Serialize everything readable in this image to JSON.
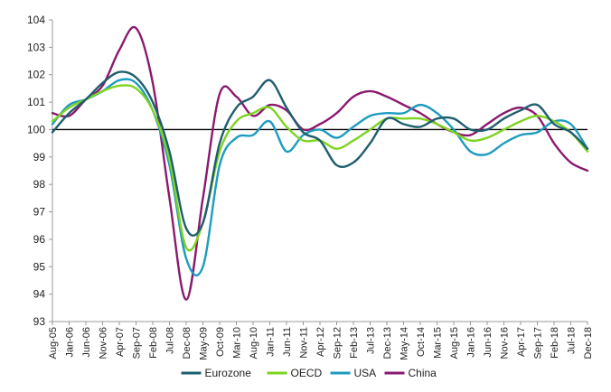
{
  "chart_data": {
    "type": "line",
    "title": "",
    "xlabel": "",
    "ylabel": "",
    "ylim": [
      93,
      104
    ],
    "yticks": [
      93,
      94,
      95,
      96,
      97,
      98,
      99,
      100,
      101,
      102,
      103,
      104
    ],
    "reference_line": 100,
    "reference_line_color": "#000000",
    "x_tick_labels": [
      "Aug-05",
      "Jan-06",
      "Jun-06",
      "Nov-06",
      "Apr-07",
      "Sep-07",
      "Feb-08",
      "Jul-08",
      "Dec-08",
      "May-09",
      "Oct-09",
      "Mar-10",
      "Aug-10",
      "Jan-11",
      "Jun-11",
      "Nov-11",
      "Apr-12",
      "Sep-12",
      "Feb-13",
      "Jul-13",
      "Dec-13",
      "May-14",
      "Oct-14",
      "Mar-15",
      "Aug-15",
      "Jan-16",
      "Jun-16",
      "Nov-16",
      "Apr-17",
      "Sep-17",
      "Feb-18",
      "Jul-18",
      "Dec-18"
    ],
    "legend_position": "bottom",
    "grid": false,
    "series": [
      {
        "name": "Eurozone",
        "color": "#1f5e6e",
        "values": [
          99.9,
          100.6,
          101.1,
          101.7,
          102.1,
          101.9,
          101.0,
          99.2,
          96.4,
          96.6,
          99.5,
          100.8,
          101.2,
          101.8,
          100.8,
          99.9,
          99.6,
          98.7,
          98.8,
          99.5,
          100.4,
          100.2,
          100.1,
          100.4,
          100.4,
          100.0,
          100.0,
          100.4,
          100.7,
          100.9,
          100.2,
          99.9,
          99.3
        ]
      },
      {
        "name": "OECD",
        "color": "#7ed321",
        "values": [
          100.3,
          100.8,
          101.1,
          101.4,
          101.6,
          101.5,
          100.7,
          98.9,
          95.7,
          96.6,
          99.2,
          100.3,
          100.6,
          100.8,
          100.1,
          99.6,
          99.6,
          99.3,
          99.6,
          100.0,
          100.4,
          100.4,
          100.4,
          100.2,
          99.9,
          99.6,
          99.7,
          100.0,
          100.3,
          100.5,
          100.3,
          99.9,
          99.2
        ]
      },
      {
        "name": "USA",
        "color": "#1e9bbf",
        "values": [
          100.2,
          100.9,
          101.1,
          101.4,
          101.8,
          101.7,
          100.7,
          98.7,
          95.3,
          95.0,
          98.7,
          99.7,
          99.8,
          100.3,
          99.2,
          99.8,
          100.0,
          99.7,
          100.1,
          100.5,
          100.6,
          100.6,
          100.9,
          100.6,
          100.0,
          99.2,
          99.1,
          99.5,
          99.8,
          99.9,
          100.3,
          100.2,
          99.3
        ]
      },
      {
        "name": "China",
        "color": "#8b1a6e",
        "values": [
          100.6,
          100.5,
          101.1,
          101.6,
          102.9,
          103.7,
          101.7,
          97.5,
          93.8,
          97.5,
          101.3,
          101.2,
          100.5,
          100.9,
          100.7,
          100.0,
          100.2,
          100.6,
          101.2,
          101.4,
          101.2,
          100.9,
          100.6,
          100.2,
          99.9,
          99.8,
          100.2,
          100.6,
          100.8,
          100.5,
          99.5,
          98.8,
          98.5
        ]
      }
    ]
  }
}
